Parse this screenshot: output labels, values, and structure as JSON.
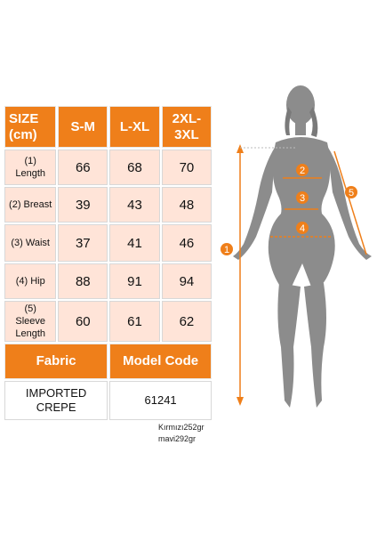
{
  "table": {
    "header": {
      "size_label_line1": "SIZE",
      "size_label_line2": "(cm)",
      "sizes": [
        "S-M",
        "L-XL",
        "2XL-",
        "3XL"
      ]
    },
    "rows": [
      {
        "label_line1": "(1)",
        "label_line2": "Length",
        "values": [
          "66",
          "68",
          "70"
        ]
      },
      {
        "label_line1": "(2) Breast",
        "label_line2": "",
        "values": [
          "39",
          "43",
          "48"
        ]
      },
      {
        "label_line1": "(3) Waist",
        "label_line2": "",
        "values": [
          "37",
          "41",
          "46"
        ]
      },
      {
        "label_line1": "(4) Hip",
        "label_line2": "",
        "values": [
          "88",
          "91",
          "94"
        ]
      },
      {
        "label_line1": "(5)",
        "label_line2": "Sleeve",
        "label_line3": "Length",
        "values": [
          "60",
          "61",
          "62"
        ]
      }
    ],
    "footer": {
      "fabric_label": "Fabric",
      "model_code_label": "Model Code",
      "fabric_value_line1": "IMPORTED",
      "fabric_value_line2": "CREPE",
      "model_code_value": "61241"
    }
  },
  "notes": {
    "line1": "Kırmızı252gr",
    "line2": "mavi292gr"
  },
  "figure": {
    "markers": [
      "1",
      "2",
      "3",
      "4",
      "5"
    ],
    "colors": {
      "silhouette": "#8c8c8c",
      "marker": "#ef7f1a",
      "measure_line": "#ef7f1a"
    }
  }
}
